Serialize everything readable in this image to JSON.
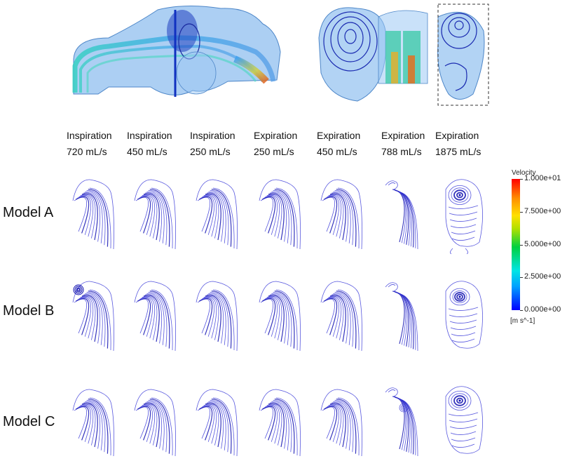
{
  "columns": [
    {
      "phase": "Inspiration",
      "flow": "720 mL/s"
    },
    {
      "phase": "Inspiration",
      "flow": "450 mL/s"
    },
    {
      "phase": "Inspiration",
      "flow": "250 mL/s"
    },
    {
      "phase": "Expiration",
      "flow": "250 mL/s"
    },
    {
      "phase": "Expiration",
      "flow": "450 mL/s"
    },
    {
      "phase": "Expiration",
      "flow": "788 mL/s"
    },
    {
      "phase": "Expiration",
      "flow": "1875 mL/s"
    }
  ],
  "rows": [
    {
      "label": "Model A"
    },
    {
      "label": "Model B"
    },
    {
      "label": "Model C"
    }
  ],
  "colorbar": {
    "title": "Velocity",
    "ticks": [
      "1.000e+01",
      "7.500e+00",
      "5.000e+00",
      "2.500e+00",
      "0.000e+00"
    ],
    "unit": "[m s^-1]",
    "min": 0,
    "max": 10
  },
  "colors": {
    "streamline": "#3a3ad8",
    "streamline_dark": "#1010b0",
    "model_fill": "#6fa8e0"
  }
}
